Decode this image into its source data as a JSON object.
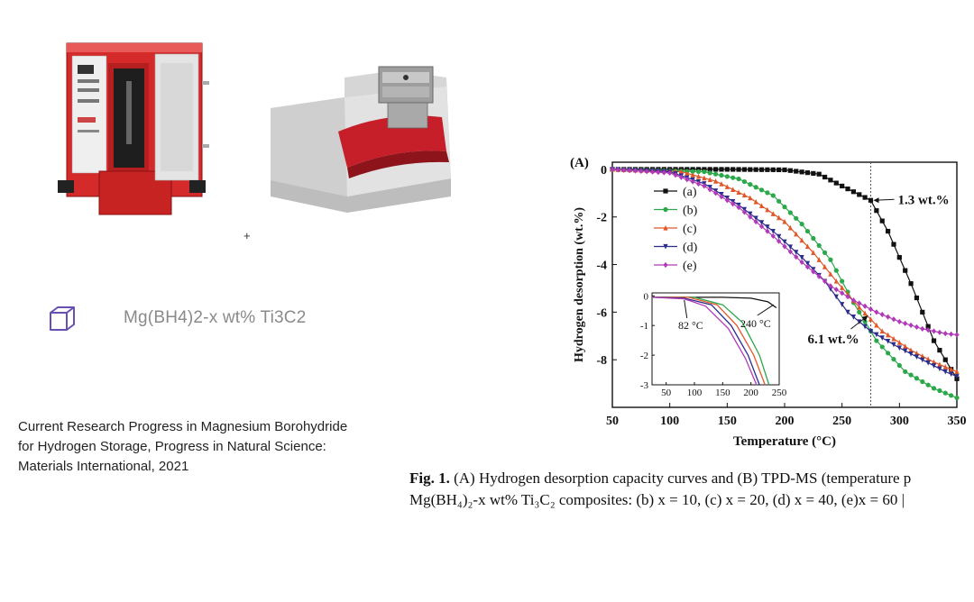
{
  "left": {
    "plus": "+",
    "material_label": "Mg(BH4)2-x wt% Ti3C2",
    "citation": {
      "line1": "Current Research Progress in Magnesium Borohydride",
      "line2": "for Hydrogen Storage,   Progress in Natural Science:",
      "line3": "Materials International, 2021"
    }
  },
  "chart_data": {
    "type": "line",
    "panel_label": "(A)",
    "xlabel": "Temperature (°C)",
    "ylabel": "Hydrogen desorption (wt.%)",
    "xlim": [
      50,
      350
    ],
    "ylim": [
      -10,
      0.3
    ],
    "x_ticks": [
      "50",
      "100",
      "150",
      "200",
      "250",
      "300",
      "350"
    ],
    "y_ticks": [
      "0",
      "-2",
      "-4",
      "-6",
      "-8"
    ],
    "vline_x": 275,
    "annotations": [
      {
        "text": "1.3 wt.%",
        "x": 275,
        "y": -1.3
      },
      {
        "text": "6.1 wt.%",
        "x": 275,
        "y": -6.1
      }
    ],
    "series": [
      {
        "name": "(a)",
        "color": "#111111",
        "marker": "square",
        "points": [
          [
            50,
            0
          ],
          [
            150,
            0
          ],
          [
            200,
            -0.02
          ],
          [
            230,
            -0.2
          ],
          [
            250,
            -0.7
          ],
          [
            275,
            -1.3
          ],
          [
            290,
            -2.6
          ],
          [
            310,
            -4.8
          ],
          [
            330,
            -7.2
          ],
          [
            350,
            -8.8
          ]
        ]
      },
      {
        "name": "(b)",
        "color": "#2aa84a",
        "marker": "circle",
        "points": [
          [
            50,
            0
          ],
          [
            130,
            -0.1
          ],
          [
            160,
            -0.4
          ],
          [
            190,
            -1.1
          ],
          [
            215,
            -2.3
          ],
          [
            240,
            -3.8
          ],
          [
            260,
            -5.6
          ],
          [
            280,
            -7.2
          ],
          [
            305,
            -8.5
          ],
          [
            330,
            -9.2
          ],
          [
            350,
            -9.6
          ]
        ]
      },
      {
        "name": "(c)",
        "color": "#e0582a",
        "marker": "triangle-up",
        "points": [
          [
            50,
            0
          ],
          [
            110,
            -0.1
          ],
          [
            140,
            -0.5
          ],
          [
            170,
            -1.2
          ],
          [
            200,
            -2.2
          ],
          [
            225,
            -3.5
          ],
          [
            245,
            -4.7
          ],
          [
            265,
            -5.8
          ],
          [
            285,
            -6.8
          ],
          [
            310,
            -7.6
          ],
          [
            330,
            -8.1
          ],
          [
            350,
            -8.5
          ]
        ]
      },
      {
        "name": "(d)",
        "color": "#2c2c8c",
        "marker": "triangle-down",
        "points": [
          [
            50,
            0
          ],
          [
            100,
            -0.1
          ],
          [
            130,
            -0.6
          ],
          [
            160,
            -1.5
          ],
          [
            190,
            -2.6
          ],
          [
            215,
            -3.7
          ],
          [
            235,
            -4.7
          ],
          [
            255,
            -6.0
          ],
          [
            275,
            -6.8
          ],
          [
            300,
            -7.5
          ],
          [
            320,
            -8.0
          ],
          [
            340,
            -8.5
          ],
          [
            350,
            -8.7
          ]
        ]
      },
      {
        "name": "(e)",
        "color": "#b03ab8",
        "marker": "diamond",
        "points": [
          [
            50,
            0
          ],
          [
            100,
            -0.15
          ],
          [
            130,
            -0.7
          ],
          [
            160,
            -1.6
          ],
          [
            190,
            -2.8
          ],
          [
            215,
            -3.9
          ],
          [
            240,
            -4.9
          ],
          [
            260,
            -5.5
          ],
          [
            280,
            -6.0
          ],
          [
            300,
            -6.4
          ],
          [
            320,
            -6.7
          ],
          [
            340,
            -6.9
          ],
          [
            350,
            -6.95
          ]
        ]
      }
    ],
    "inset": {
      "xlim": [
        25,
        250
      ],
      "ylim": [
        -3,
        0.1
      ],
      "x_ticks": [
        "50",
        "100",
        "150",
        "200",
        "250"
      ],
      "y_ticks": [
        "0",
        "-1",
        "-2",
        "-3"
      ],
      "annotations": [
        "82 °C",
        "240 °C"
      ],
      "series": [
        {
          "color": "#111111",
          "points": [
            [
              25,
              -0.05
            ],
            [
              150,
              -0.05
            ],
            [
              200,
              -0.08
            ],
            [
              230,
              -0.2
            ],
            [
              245,
              -0.4
            ]
          ]
        },
        {
          "color": "#2aa84a",
          "points": [
            [
              25,
              -0.05
            ],
            [
              100,
              -0.05
            ],
            [
              150,
              -0.3
            ],
            [
              185,
              -0.9
            ],
            [
              215,
              -2.0
            ],
            [
              232,
              -3.0
            ]
          ]
        },
        {
          "color": "#e0582a",
          "points": [
            [
              25,
              -0.05
            ],
            [
              90,
              -0.05
            ],
            [
              140,
              -0.3
            ],
            [
              175,
              -1.0
            ],
            [
              205,
              -2.0
            ],
            [
              225,
              -3.0
            ]
          ]
        },
        {
          "color": "#2c2c8c",
          "points": [
            [
              25,
              -0.05
            ],
            [
              82,
              -0.08
            ],
            [
              130,
              -0.3
            ],
            [
              165,
              -1.0
            ],
            [
              195,
              -2.0
            ],
            [
              215,
              -3.0
            ]
          ]
        },
        {
          "color": "#b03ab8",
          "points": [
            [
              25,
              -0.05
            ],
            [
              82,
              -0.1
            ],
            [
              120,
              -0.35
            ],
            [
              160,
              -1.1
            ],
            [
              190,
              -2.1
            ],
            [
              210,
              -3.0
            ]
          ]
        }
      ]
    }
  },
  "caption": {
    "fig_label": "Fig. 1.",
    "line1_text": "(A) Hydrogen desorption capacity curves and (B) TPD-MS (temperature p",
    "line2_text": "Mg(BH₄)₂-x wt% Ti₃C₂ composites: (b) x = 10, (c) x = 20, (d) x = 40, (e)x = 60 |"
  }
}
